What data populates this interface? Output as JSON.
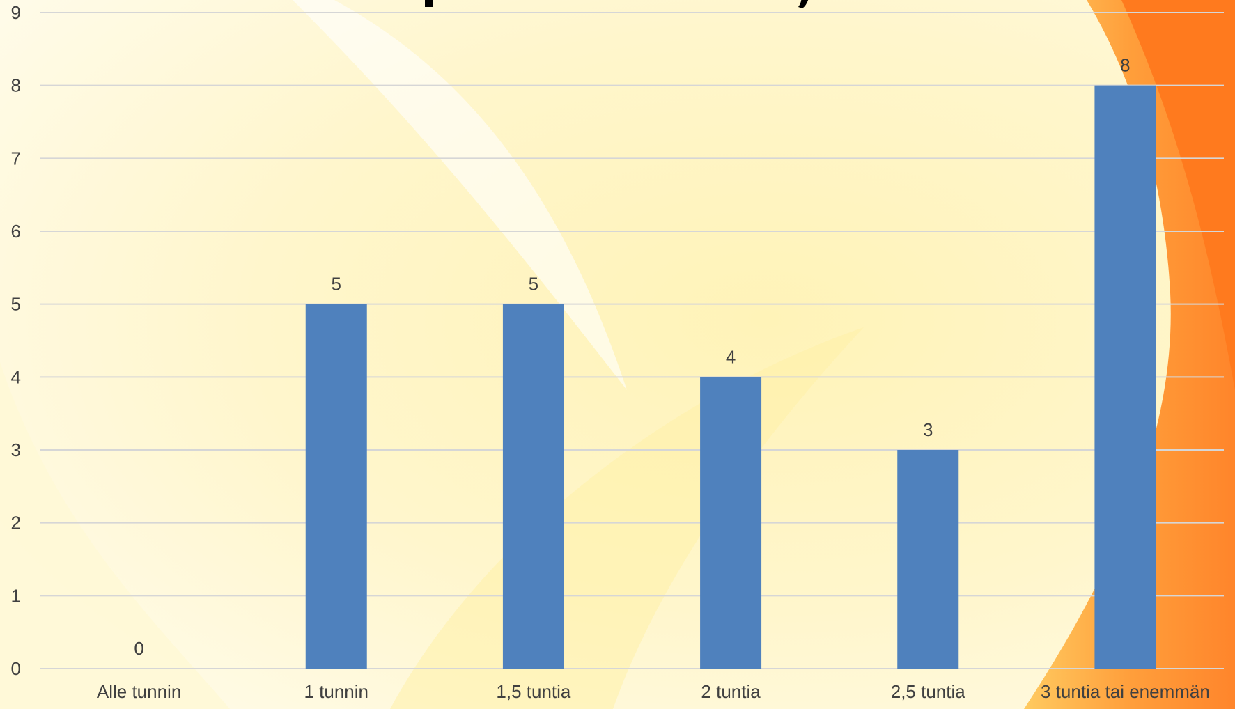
{
  "colors": {
    "bar": "#4f81bd",
    "grid": "#d6d6d6",
    "text": "#404040",
    "accent_orange": "#ff8a2a"
  },
  "chart_data": {
    "type": "bar",
    "categories": [
      "Alle tunnin",
      "1 tunnin",
      "1,5 tuntia",
      "2 tuntia",
      "2,5 tuntia",
      "3 tuntia tai enemmän"
    ],
    "values": [
      0,
      5,
      5,
      4,
      3,
      8
    ],
    "data_labels": [
      "0",
      "5",
      "5",
      "4",
      "3",
      "8"
    ],
    "yticks": [
      "0",
      "1",
      "2",
      "3",
      "4",
      "5",
      "6",
      "7",
      "8",
      "9"
    ],
    "ylim": [
      0,
      9
    ],
    "grid": true,
    "legend": "none"
  }
}
